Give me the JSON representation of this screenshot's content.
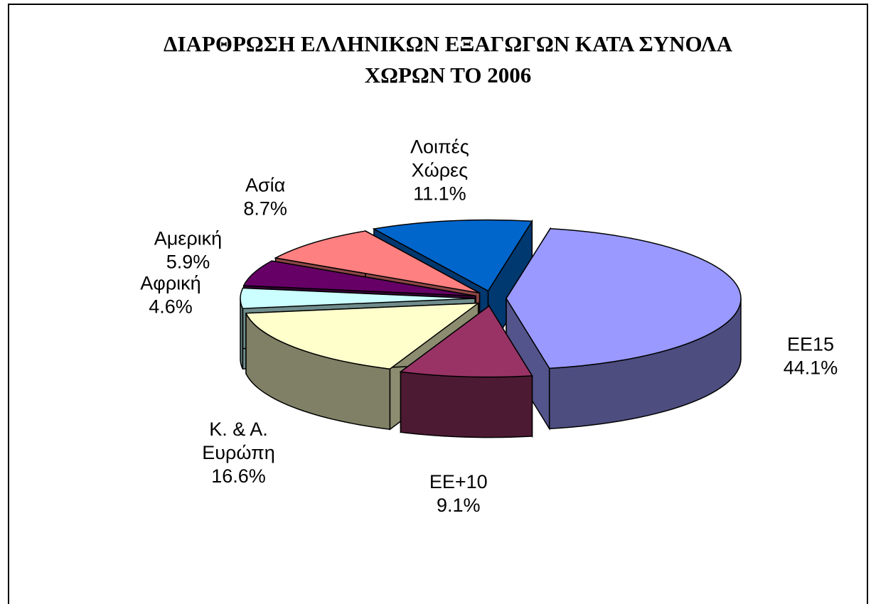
{
  "chart_data": {
    "type": "pie",
    "title": "ΔΙΑΡΘΡΩΣΗ ΕΛΛΗΝΙΚΩΝ ΕΞΑΓΩΓΩΝ ΚΑΤΑ ΣΥΝΟΛΑ ΧΩΡΩΝ ΤΟ 2006",
    "categories": [
      "ΕΕ15",
      "ΕΕ+10",
      "Κ. & Α. Ευρώπη",
      "Αφρική",
      "Αμερική",
      "Ασία",
      "Λοιπές Χώρες"
    ],
    "values": [
      44.1,
      9.1,
      16.6,
      4.6,
      5.9,
      8.7,
      11.1
    ],
    "value_labels": [
      "44.1%",
      "9.1%",
      "16.6%",
      "4.6%",
      "5.9%",
      "8.7%",
      "11.1%"
    ],
    "colors": [
      "#9999ff",
      "#993366",
      "#ffffcc",
      "#ccffff",
      "#660066",
      "#ff8080",
      "#0066cc"
    ],
    "three_d": true
  }
}
